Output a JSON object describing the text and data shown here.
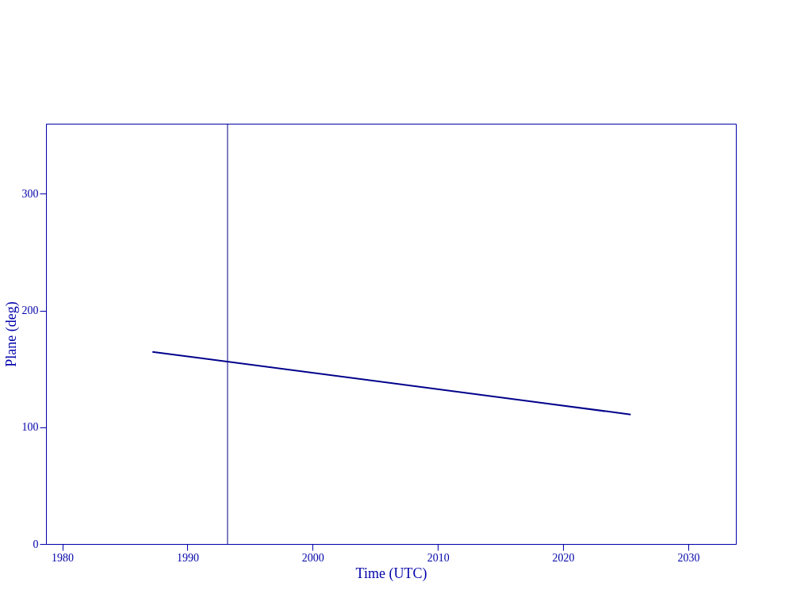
{
  "chart_data": {
    "type": "line",
    "xlabel": "Time (UTC)",
    "ylabel": "Plane (deg)",
    "x": [
      1987.2,
      2025.4
    ],
    "series": [
      {
        "color": "#00008b",
        "values": [
          164.6,
          110.9
        ]
      }
    ],
    "xlim": [
      1978.7,
      2033.8
    ],
    "xticks": [
      1980,
      1990,
      2000,
      2010,
      2020,
      2030
    ],
    "ylim": [
      0,
      360
    ],
    "yticks": [
      0,
      100,
      200,
      300
    ],
    "ref_lines": [
      {
        "axis": "x",
        "value": 1993.2,
        "color": "#00008b"
      }
    ],
    "grid": false
  }
}
